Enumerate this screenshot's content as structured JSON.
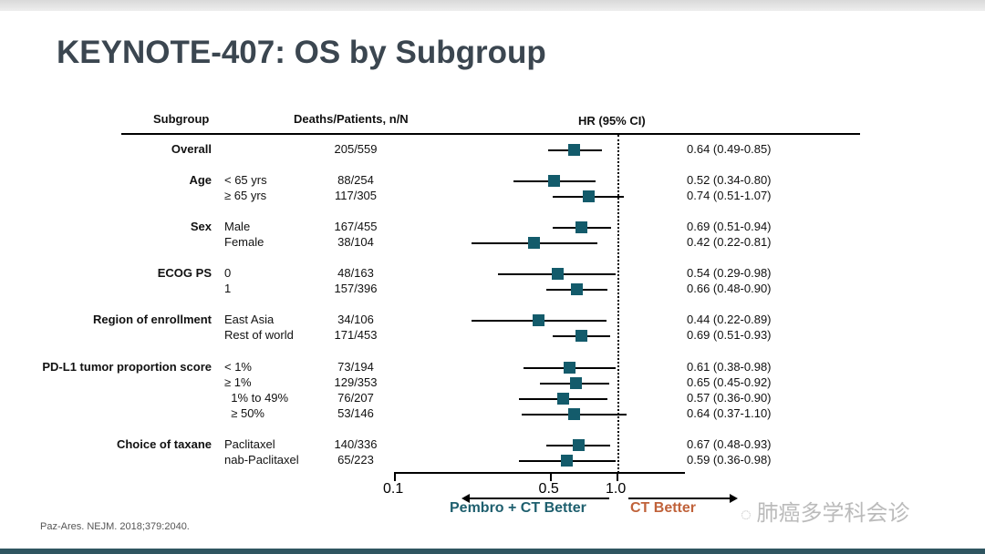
{
  "title": "KEYNOTE-407: OS by Subgroup",
  "citation": "Paz-Ares. NEJM. 2018;379:2040.",
  "watermark": "肺癌多学科会诊",
  "colors": {
    "marker": "#135b6b",
    "pembro": "#1e5f6e",
    "ct": "#c0623a"
  },
  "chart_data": {
    "type": "forest",
    "headers": {
      "subgroup": "Subgroup",
      "deaths": "Deaths/Patients, n/N",
      "hr": "HR (95% CI)"
    },
    "xscale": "log",
    "xlim": [
      0.1,
      2.0
    ],
    "xticks": [
      {
        "v": 0.1,
        "label": "0.1"
      },
      {
        "v": 0.5,
        "label": "0.5"
      },
      {
        "v": 1.0,
        "label": "1.0"
      }
    ],
    "reference": 1.0,
    "left_label": "Pembro + CT Better",
    "right_label": "CT Better",
    "rows": [
      {
        "group": "Overall",
        "level": "",
        "n": "205/559",
        "hr": 0.64,
        "lo": 0.49,
        "hi": 0.85,
        "text": "0.64 (0.49-0.85)"
      },
      {
        "group": "Age",
        "level": "< 65 yrs",
        "n": "88/254",
        "hr": 0.52,
        "lo": 0.34,
        "hi": 0.8,
        "text": "0.52 (0.34-0.80)"
      },
      {
        "group": "",
        "level": "≥ 65 yrs",
        "n": "117/305",
        "hr": 0.74,
        "lo": 0.51,
        "hi": 1.07,
        "text": "0.74 (0.51-1.07)"
      },
      {
        "group": "Sex",
        "level": "Male",
        "n": "167/455",
        "hr": 0.69,
        "lo": 0.51,
        "hi": 0.94,
        "text": "0.69 (0.51-0.94)"
      },
      {
        "group": "",
        "level": "Female",
        "n": "38/104",
        "hr": 0.42,
        "lo": 0.22,
        "hi": 0.81,
        "text": "0.42 (0.22-0.81)"
      },
      {
        "group": "ECOG PS",
        "level": "0",
        "n": "48/163",
        "hr": 0.54,
        "lo": 0.29,
        "hi": 0.98,
        "text": "0.54 (0.29-0.98)"
      },
      {
        "group": "",
        "level": "1",
        "n": "157/396",
        "hr": 0.66,
        "lo": 0.48,
        "hi": 0.9,
        "text": "0.66 (0.48-0.90)"
      },
      {
        "group": "Region of enrollment",
        "level": "East Asia",
        "n": "34/106",
        "hr": 0.44,
        "lo": 0.22,
        "hi": 0.89,
        "text": "0.44 (0.22-0.89)"
      },
      {
        "group": "",
        "level": "Rest of world",
        "n": "171/453",
        "hr": 0.69,
        "lo": 0.51,
        "hi": 0.93,
        "text": "0.69 (0.51-0.93)"
      },
      {
        "group": "PD-L1 tumor proportion score",
        "level": "< 1%",
        "n": "73/194",
        "hr": 0.61,
        "lo": 0.38,
        "hi": 0.98,
        "text": "0.61 (0.38-0.98)"
      },
      {
        "group": "",
        "level": "≥ 1%",
        "n": "129/353",
        "hr": 0.65,
        "lo": 0.45,
        "hi": 0.92,
        "text": "0.65 (0.45-0.92)"
      },
      {
        "group": "",
        "level": "  1% to 49%",
        "n": "76/207",
        "hr": 0.57,
        "lo": 0.36,
        "hi": 0.9,
        "text": "0.57 (0.36-0.90)"
      },
      {
        "group": "",
        "level": "  ≥ 50%",
        "n": "53/146",
        "hr": 0.64,
        "lo": 0.37,
        "hi": 1.1,
        "text": "0.64 (0.37-1.10)"
      },
      {
        "group": "Choice of taxane",
        "level": "Paclitaxel",
        "n": "140/336",
        "hr": 0.67,
        "lo": 0.48,
        "hi": 0.93,
        "text": "0.67 (0.48-0.93)"
      },
      {
        "group": "",
        "level": "nab-Paclitaxel",
        "n": "65/223",
        "hr": 0.59,
        "lo": 0.36,
        "hi": 0.98,
        "text": "0.59 (0.36-0.98)"
      }
    ]
  }
}
